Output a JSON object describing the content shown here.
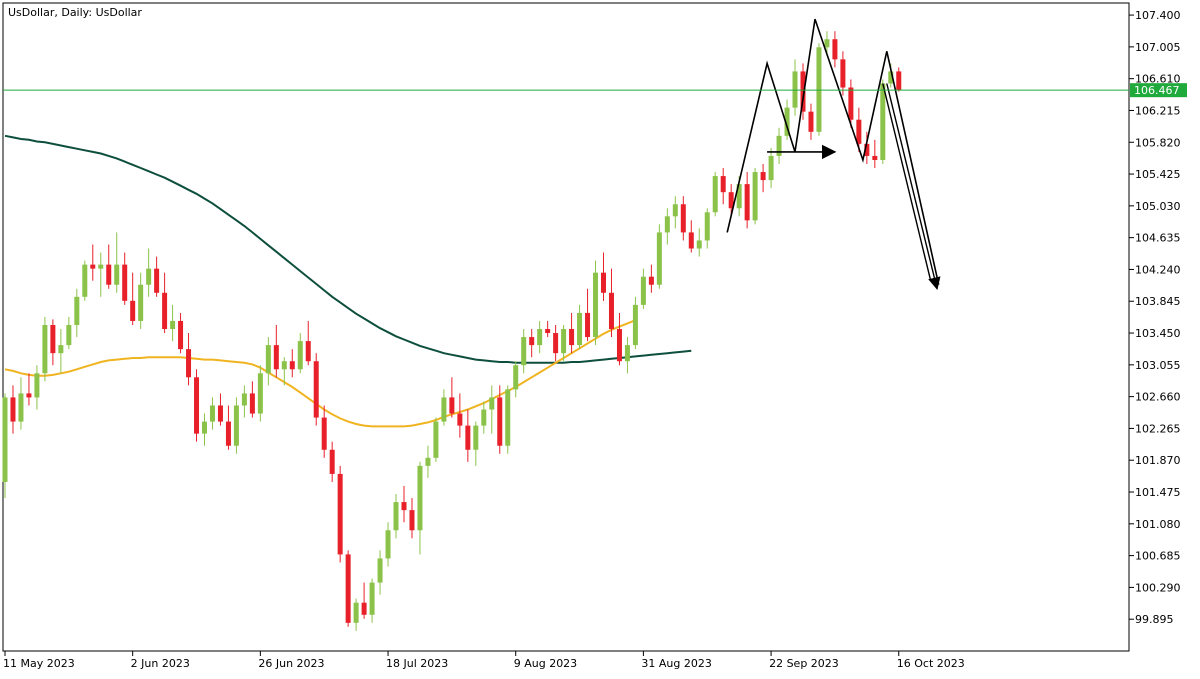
{
  "chart_header": "UsDollar, Daily:  UsDollar",
  "colors": {
    "bull": "#8bc34a",
    "bear": "#e8202a",
    "ma_slow": "#0d4f3c",
    "ma_fast": "#f0b420",
    "price_line": "#1faa3b",
    "pattern": "#000000",
    "frame": "#000000"
  },
  "chart_data": {
    "type": "candlestick",
    "title": "UsDollar, Daily:  UsDollar",
    "symbol": "UsDollar",
    "timeframe": "Daily",
    "y_ticks": [
      "107.400",
      "107.005",
      "106.610",
      "106.215",
      "105.820",
      "105.425",
      "105.030",
      "104.635",
      "104.240",
      "103.845",
      "103.450",
      "103.055",
      "102.660",
      "102.265",
      "101.870",
      "101.475",
      "101.080",
      "100.685",
      "100.290",
      "99.895"
    ],
    "ylim": [
      99.5,
      107.55
    ],
    "x_ticks": [
      {
        "label": "11 May 2023",
        "index": 0
      },
      {
        "label": "2 Jun 2023",
        "index": 16
      },
      {
        "label": "26 Jun 2023",
        "index": 32
      },
      {
        "label": "18 Jul 2023",
        "index": 48
      },
      {
        "label": "9 Aug 2023",
        "index": 64
      },
      {
        "label": "31 Aug 2023",
        "index": 80
      },
      {
        "label": "22 Sep 2023",
        "index": 96
      },
      {
        "label": "16 Oct 2023",
        "index": 112
      }
    ],
    "current_price": "106.467",
    "current_price_value": 106.467,
    "candles": [
      [
        101.6,
        102.7,
        101.4,
        102.65
      ],
      [
        102.65,
        102.8,
        102.2,
        102.35
      ],
      [
        102.35,
        102.9,
        102.25,
        102.7
      ],
      [
        102.7,
        102.95,
        102.55,
        102.65
      ],
      [
        102.65,
        103.05,
        102.5,
        102.95
      ],
      [
        102.95,
        103.65,
        102.85,
        103.55
      ],
      [
        103.55,
        103.62,
        103.05,
        103.2
      ],
      [
        103.2,
        103.5,
        102.95,
        103.3
      ],
      [
        103.3,
        103.65,
        103.25,
        103.55
      ],
      [
        103.55,
        104.0,
        103.4,
        103.9
      ],
      [
        103.9,
        104.35,
        103.85,
        104.3
      ],
      [
        104.3,
        104.55,
        104.1,
        104.25
      ],
      [
        104.25,
        104.45,
        103.9,
        104.3
      ],
      [
        104.3,
        104.55,
        104.0,
        104.05
      ],
      [
        104.05,
        104.7,
        103.95,
        104.3
      ],
      [
        104.3,
        104.45,
        103.8,
        103.85
      ],
      [
        103.85,
        104.2,
        103.55,
        103.6
      ],
      [
        103.6,
        104.2,
        103.5,
        104.05
      ],
      [
        104.05,
        104.5,
        103.9,
        104.25
      ],
      [
        104.25,
        104.4,
        103.9,
        103.95
      ],
      [
        103.95,
        104.2,
        103.45,
        103.5
      ],
      [
        103.5,
        103.8,
        103.35,
        103.6
      ],
      [
        103.6,
        103.7,
        103.2,
        103.25
      ],
      [
        103.25,
        103.45,
        102.8,
        102.9
      ],
      [
        102.9,
        103.0,
        102.1,
        102.2
      ],
      [
        102.2,
        102.45,
        102.05,
        102.35
      ],
      [
        102.35,
        102.65,
        102.25,
        102.55
      ],
      [
        102.55,
        102.7,
        102.3,
        102.35
      ],
      [
        102.35,
        102.55,
        102.0,
        102.05
      ],
      [
        102.05,
        102.65,
        101.95,
        102.55
      ],
      [
        102.55,
        102.8,
        102.4,
        102.7
      ],
      [
        102.7,
        102.85,
        102.4,
        102.45
      ],
      [
        102.45,
        103.05,
        102.35,
        102.95
      ],
      [
        102.95,
        103.4,
        102.8,
        103.3
      ],
      [
        103.3,
        103.55,
        102.9,
        103.0
      ],
      [
        103.0,
        103.15,
        102.8,
        103.1
      ],
      [
        103.1,
        103.25,
        102.9,
        103.0
      ],
      [
        103.0,
        103.45,
        102.95,
        103.35
      ],
      [
        103.35,
        103.6,
        103.05,
        103.1
      ],
      [
        103.1,
        103.2,
        102.3,
        102.4
      ],
      [
        102.4,
        102.55,
        101.9,
        102.0
      ],
      [
        102.0,
        102.1,
        101.6,
        101.7
      ],
      [
        101.7,
        101.8,
        100.6,
        100.7
      ],
      [
        100.7,
        100.75,
        99.8,
        99.85
      ],
      [
        99.85,
        100.15,
        99.75,
        100.1
      ],
      [
        100.1,
        100.35,
        99.9,
        99.95
      ],
      [
        99.95,
        100.4,
        99.85,
        100.35
      ],
      [
        100.35,
        100.75,
        100.2,
        100.65
      ],
      [
        100.65,
        101.1,
        100.55,
        101.0
      ],
      [
        101.0,
        101.45,
        100.9,
        101.35
      ],
      [
        101.35,
        101.55,
        101.1,
        101.25
      ],
      [
        101.25,
        101.4,
        100.9,
        101.0
      ],
      [
        101.0,
        101.85,
        100.7,
        101.8
      ],
      [
        101.8,
        102.05,
        101.65,
        101.9
      ],
      [
        101.9,
        102.4,
        101.85,
        102.35
      ],
      [
        102.35,
        102.75,
        102.3,
        102.65
      ],
      [
        102.65,
        102.9,
        102.4,
        102.45
      ],
      [
        102.45,
        102.7,
        102.15,
        102.3
      ],
      [
        102.3,
        102.5,
        101.85,
        102.0
      ],
      [
        102.0,
        102.35,
        101.8,
        102.3
      ],
      [
        102.3,
        102.6,
        102.2,
        102.5
      ],
      [
        102.5,
        102.8,
        102.2,
        102.65
      ],
      [
        102.65,
        102.8,
        101.95,
        102.05
      ],
      [
        102.05,
        102.8,
        101.95,
        102.75
      ],
      [
        102.75,
        103.1,
        102.65,
        103.05
      ],
      [
        103.05,
        103.5,
        102.95,
        103.4
      ],
      [
        103.4,
        103.5,
        103.15,
        103.3
      ],
      [
        103.3,
        103.6,
        103.2,
        103.5
      ],
      [
        103.5,
        103.6,
        103.4,
        103.45
      ],
      [
        103.45,
        103.55,
        103.1,
        103.2
      ],
      [
        103.2,
        103.55,
        103.1,
        103.5
      ],
      [
        103.5,
        103.7,
        103.2,
        103.3
      ],
      [
        103.3,
        103.8,
        103.25,
        103.7
      ],
      [
        103.7,
        104.0,
        103.35,
        103.4
      ],
      [
        103.4,
        104.35,
        103.3,
        104.2
      ],
      [
        104.2,
        104.45,
        103.85,
        103.95
      ],
      [
        103.95,
        104.25,
        103.4,
        103.5
      ],
      [
        103.5,
        103.7,
        103.05,
        103.1
      ],
      [
        103.1,
        103.4,
        102.95,
        103.3
      ],
      [
        103.3,
        103.9,
        103.25,
        103.8
      ],
      [
        103.8,
        104.25,
        103.75,
        104.15
      ],
      [
        104.15,
        104.3,
        103.95,
        104.05
      ],
      [
        104.05,
        104.8,
        104.0,
        104.7
      ],
      [
        104.7,
        105.0,
        104.55,
        104.9
      ],
      [
        104.9,
        105.15,
        104.75,
        105.05
      ],
      [
        105.05,
        105.15,
        104.6,
        104.7
      ],
      [
        104.7,
        104.85,
        104.45,
        104.5
      ],
      [
        104.5,
        104.75,
        104.4,
        104.6
      ],
      [
        104.6,
        105.0,
        104.5,
        104.95
      ],
      [
        104.95,
        105.45,
        104.9,
        105.4
      ],
      [
        105.4,
        105.5,
        105.05,
        105.2
      ],
      [
        105.2,
        105.3,
        104.9,
        105.0
      ],
      [
        105.0,
        105.4,
        104.9,
        105.3
      ],
      [
        105.3,
        105.45,
        104.75,
        104.85
      ],
      [
        104.85,
        105.5,
        104.8,
        105.45
      ],
      [
        105.45,
        105.55,
        105.2,
        105.35
      ],
      [
        105.35,
        105.75,
        105.25,
        105.65
      ],
      [
        105.65,
        106.0,
        105.55,
        105.9
      ],
      [
        105.9,
        106.35,
        105.85,
        106.25
      ],
      [
        106.25,
        106.85,
        106.15,
        106.7
      ],
      [
        106.7,
        106.8,
        106.1,
        106.2
      ],
      [
        106.2,
        106.3,
        105.85,
        105.95
      ],
      [
        105.95,
        107.05,
        105.9,
        107.0
      ],
      [
        107.0,
        107.2,
        106.9,
        107.1
      ],
      [
        107.1,
        107.2,
        106.75,
        106.85
      ],
      [
        106.85,
        106.95,
        106.4,
        106.5
      ],
      [
        106.5,
        106.6,
        106.0,
        106.1
      ],
      [
        106.1,
        106.25,
        105.7,
        105.8
      ],
      [
        105.8,
        105.95,
        105.55,
        105.65
      ],
      [
        105.65,
        105.85,
        105.5,
        105.6
      ],
      [
        105.6,
        106.6,
        105.55,
        106.55
      ],
      [
        106.55,
        106.8,
        106.5,
        106.7
      ],
      [
        106.7,
        106.75,
        106.45,
        106.47
      ]
    ],
    "ma_slow": [
      105.9,
      105.88,
      105.86,
      105.85,
      105.83,
      105.82,
      105.8,
      105.78,
      105.76,
      105.74,
      105.72,
      105.7,
      105.68,
      105.65,
      105.62,
      105.58,
      105.54,
      105.5,
      105.46,
      105.42,
      105.38,
      105.33,
      105.28,
      105.23,
      105.18,
      105.12,
      105.06,
      104.99,
      104.92,
      104.85,
      104.78,
      104.7,
      104.62,
      104.54,
      104.46,
      104.38,
      104.3,
      104.22,
      104.14,
      104.06,
      103.98,
      103.9,
      103.83,
      103.76,
      103.69,
      103.63,
      103.57,
      103.51,
      103.46,
      103.41,
      103.37,
      103.33,
      103.29,
      103.26,
      103.23,
      103.2,
      103.18,
      103.16,
      103.14,
      103.12,
      103.11,
      103.1,
      103.09,
      103.09,
      103.08,
      103.08,
      103.08,
      103.08,
      103.08,
      103.08,
      103.08,
      103.09,
      103.09,
      103.1,
      103.11,
      103.12,
      103.13,
      103.14,
      103.15,
      103.16,
      103.17,
      103.18,
      103.19,
      103.2,
      103.21,
      103.22,
      103.23
    ],
    "ma_slow_start": 0,
    "ma_fast": [
      103.0,
      102.98,
      102.95,
      102.93,
      102.92,
      102.92,
      102.93,
      102.95,
      102.97,
      103.0,
      103.03,
      103.06,
      103.09,
      103.11,
      103.12,
      103.13,
      103.14,
      103.14,
      103.15,
      103.15,
      103.15,
      103.15,
      103.15,
      103.14,
      103.13,
      103.12,
      103.12,
      103.11,
      103.1,
      103.09,
      103.08,
      103.06,
      103.02,
      102.96,
      102.9,
      102.84,
      102.78,
      102.71,
      102.64,
      102.57,
      102.5,
      102.44,
      102.39,
      102.35,
      102.32,
      102.3,
      102.29,
      102.29,
      102.29,
      102.29,
      102.29,
      102.3,
      102.32,
      102.34,
      102.37,
      102.41,
      102.44,
      102.47,
      102.5,
      102.54,
      102.58,
      102.63,
      102.68,
      102.73,
      102.78,
      102.84,
      102.9,
      102.96,
      103.02,
      103.08,
      103.14,
      103.2,
      103.26,
      103.32,
      103.38,
      103.44,
      103.49,
      103.53,
      103.57,
      103.61
    ],
    "ma_fast_start": 0,
    "pattern_path": [
      [
        90.5,
        104.7
      ],
      [
        95.5,
        106.8
      ],
      [
        99.0,
        105.7
      ],
      [
        101.5,
        107.35
      ],
      [
        107.5,
        105.6
      ],
      [
        110.5,
        106.95
      ],
      [
        117.0,
        104.05
      ]
    ],
    "pattern_arrow": [
      [
        95.5,
        105.7
      ],
      [
        104.0,
        105.7
      ]
    ],
    "projection_arrows": [
      [
        [
          110.0,
          106.55
        ],
        [
          116.0,
          104.1
        ]
      ],
      [
        [
          110.5,
          106.55
        ],
        [
          116.8,
          104.0
        ]
      ]
    ]
  }
}
